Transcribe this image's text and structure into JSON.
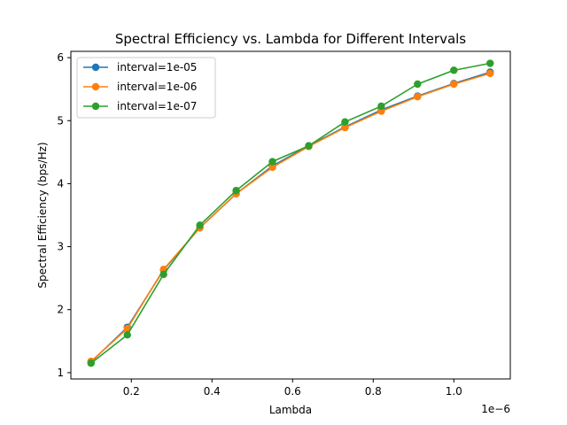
{
  "chart_data": {
    "type": "line",
    "title": "Spectral Efficiency vs. Lambda for Different Intervals",
    "xlabel": "Lambda",
    "ylabel": "Spectral Efficiency (bps/Hz)",
    "x_offset_label": "1e−6",
    "xlim": [
      0.05,
      1.14
    ],
    "ylim": [
      0.9,
      6.1
    ],
    "x_ticks": [
      0.2,
      0.4,
      0.6,
      0.8,
      1.0
    ],
    "x_tick_labels": [
      "0.2",
      "0.4",
      "0.6",
      "0.8",
      "1.0"
    ],
    "y_ticks": [
      1,
      2,
      3,
      4,
      5,
      6
    ],
    "y_tick_labels": [
      "1",
      "2",
      "3",
      "4",
      "5",
      "6"
    ],
    "grid": false,
    "legend_position": "top-left",
    "x": [
      0.1,
      0.19,
      0.28,
      0.37,
      0.46,
      0.55,
      0.64,
      0.73,
      0.82,
      0.91,
      1.0,
      1.09
    ],
    "series": [
      {
        "name": "interval=1e-05",
        "color": "#1f77b4",
        "values": [
          1.17,
          1.72,
          2.63,
          3.3,
          3.84,
          4.28,
          4.6,
          4.9,
          5.17,
          5.39,
          5.59,
          5.77
        ]
      },
      {
        "name": "interval=1e-06",
        "color": "#ff7f0e",
        "values": [
          1.18,
          1.7,
          2.64,
          3.3,
          3.84,
          4.26,
          4.59,
          4.89,
          5.15,
          5.38,
          5.58,
          5.75
        ]
      },
      {
        "name": "interval=1e-07",
        "color": "#2ca02c",
        "values": [
          1.15,
          1.6,
          2.56,
          3.34,
          3.89,
          4.35,
          4.6,
          4.98,
          5.23,
          5.58,
          5.8,
          5.91
        ]
      }
    ]
  }
}
